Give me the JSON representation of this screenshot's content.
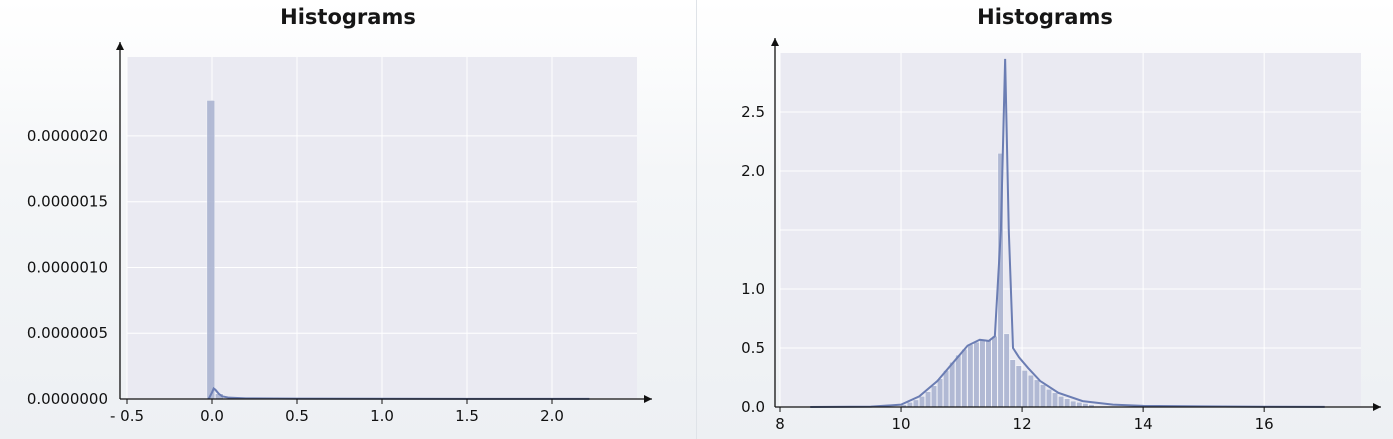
{
  "chart_data": [
    {
      "type": "bar",
      "title": "Histograms",
      "xlabel": "",
      "ylabel": "",
      "xlim": [
        -0.5,
        2.5
      ],
      "ylim": [
        0,
        2.6e-06
      ],
      "x_ticks": [
        -0.5,
        0.0,
        0.5,
        1.0,
        1.5,
        2.0
      ],
      "x_tick_labels": [
        "- 0.5",
        "0.0",
        "0.5",
        "1.0",
        "1.5",
        "2.0"
      ],
      "y_ticks": [
        0,
        5e-07,
        1e-06,
        1.5e-06,
        2e-06
      ],
      "y_tick_labels": [
        "0.0000000",
        "0.0000005",
        "0.0000010",
        "0.0000015",
        "0.0000020"
      ],
      "grid": true,
      "bins": [
        {
          "x0": -0.03,
          "x1": 0.02,
          "value": 2.27e-06
        },
        {
          "x0": 0.02,
          "x1": 0.07,
          "value": 4e-08
        }
      ],
      "kde": {
        "x": [
          -0.02,
          0.0,
          0.01,
          0.02,
          0.04,
          0.06,
          0.1,
          0.2,
          0.5,
          1.0,
          1.5,
          2.0,
          2.22
        ],
        "y": [
          0.0,
          5e-08,
          8e-08,
          7e-08,
          4e-08,
          2e-08,
          1e-08,
          5e-09,
          3e-09,
          2e-09,
          1e-09,
          1e-09,
          1e-09
        ]
      },
      "colors": {
        "background": "#eaeaf2",
        "bar": "#a7b0cf",
        "line": "#6b7db3",
        "grid": "#ffffff"
      }
    },
    {
      "type": "bar",
      "title": "Histograms",
      "xlabel": "",
      "ylabel": "",
      "xlim": [
        8,
        17.6
      ],
      "ylim": [
        0,
        3.0
      ],
      "x_ticks": [
        8,
        10,
        12,
        14,
        16
      ],
      "x_tick_labels": [
        "8",
        "10",
        "12",
        "14",
        "16"
      ],
      "y_ticks": [
        0.0,
        0.5,
        1.0,
        1.5,
        2.0,
        2.5
      ],
      "y_tick_labels": [
        "0.0",
        "0.5",
        "1.0",
        "",
        "2.0",
        "2.5"
      ],
      "grid": true,
      "bins": [
        {
          "x0": 10.0,
          "x1": 10.1,
          "value": 0.02
        },
        {
          "x0": 10.1,
          "x1": 10.2,
          "value": 0.04
        },
        {
          "x0": 10.2,
          "x1": 10.3,
          "value": 0.06
        },
        {
          "x0": 10.3,
          "x1": 10.4,
          "value": 0.09
        },
        {
          "x0": 10.4,
          "x1": 10.5,
          "value": 0.13
        },
        {
          "x0": 10.5,
          "x1": 10.6,
          "value": 0.18
        },
        {
          "x0": 10.6,
          "x1": 10.7,
          "value": 0.24
        },
        {
          "x0": 10.7,
          "x1": 10.8,
          "value": 0.31
        },
        {
          "x0": 10.8,
          "x1": 10.9,
          "value": 0.38
        },
        {
          "x0": 10.9,
          "x1": 11.0,
          "value": 0.44
        },
        {
          "x0": 11.0,
          "x1": 11.1,
          "value": 0.49
        },
        {
          "x0": 11.1,
          "x1": 11.2,
          "value": 0.53
        },
        {
          "x0": 11.2,
          "x1": 11.3,
          "value": 0.55
        },
        {
          "x0": 11.3,
          "x1": 11.4,
          "value": 0.57
        },
        {
          "x0": 11.4,
          "x1": 11.5,
          "value": 0.57
        },
        {
          "x0": 11.5,
          "x1": 11.6,
          "value": 0.6
        },
        {
          "x0": 11.6,
          "x1": 11.7,
          "value": 2.15
        },
        {
          "x0": 11.7,
          "x1": 11.8,
          "value": 0.62
        },
        {
          "x0": 11.8,
          "x1": 11.9,
          "value": 0.4
        },
        {
          "x0": 11.9,
          "x1": 12.0,
          "value": 0.35
        },
        {
          "x0": 12.0,
          "x1": 12.1,
          "value": 0.31
        },
        {
          "x0": 12.1,
          "x1": 12.2,
          "value": 0.27
        },
        {
          "x0": 12.2,
          "x1": 12.3,
          "value": 0.23
        },
        {
          "x0": 12.3,
          "x1": 12.4,
          "value": 0.19
        },
        {
          "x0": 12.4,
          "x1": 12.5,
          "value": 0.15
        },
        {
          "x0": 12.5,
          "x1": 12.6,
          "value": 0.12
        },
        {
          "x0": 12.6,
          "x1": 12.7,
          "value": 0.09
        },
        {
          "x0": 12.7,
          "x1": 12.8,
          "value": 0.07
        },
        {
          "x0": 12.8,
          "x1": 12.9,
          "value": 0.05
        },
        {
          "x0": 12.9,
          "x1": 13.0,
          "value": 0.04
        },
        {
          "x0": 13.0,
          "x1": 13.1,
          "value": 0.03
        },
        {
          "x0": 13.1,
          "x1": 13.2,
          "value": 0.02
        }
      ],
      "kde": {
        "x": [
          8.5,
          9.5,
          10.0,
          10.3,
          10.6,
          10.9,
          11.1,
          11.3,
          11.45,
          11.55,
          11.65,
          11.72,
          11.78,
          11.85,
          11.95,
          12.1,
          12.3,
          12.6,
          13.0,
          13.5,
          14.0,
          15.0,
          16.0,
          17.0
        ],
        "y": [
          0.0,
          0.003,
          0.02,
          0.09,
          0.22,
          0.4,
          0.52,
          0.57,
          0.56,
          0.6,
          1.5,
          2.95,
          1.5,
          0.5,
          0.42,
          0.33,
          0.22,
          0.12,
          0.05,
          0.02,
          0.01,
          0.005,
          0.002,
          0.001
        ]
      },
      "colors": {
        "background": "#eaeaf2",
        "bar": "#a7b0cf",
        "line": "#6b7db3",
        "grid": "#ffffff"
      }
    }
  ]
}
